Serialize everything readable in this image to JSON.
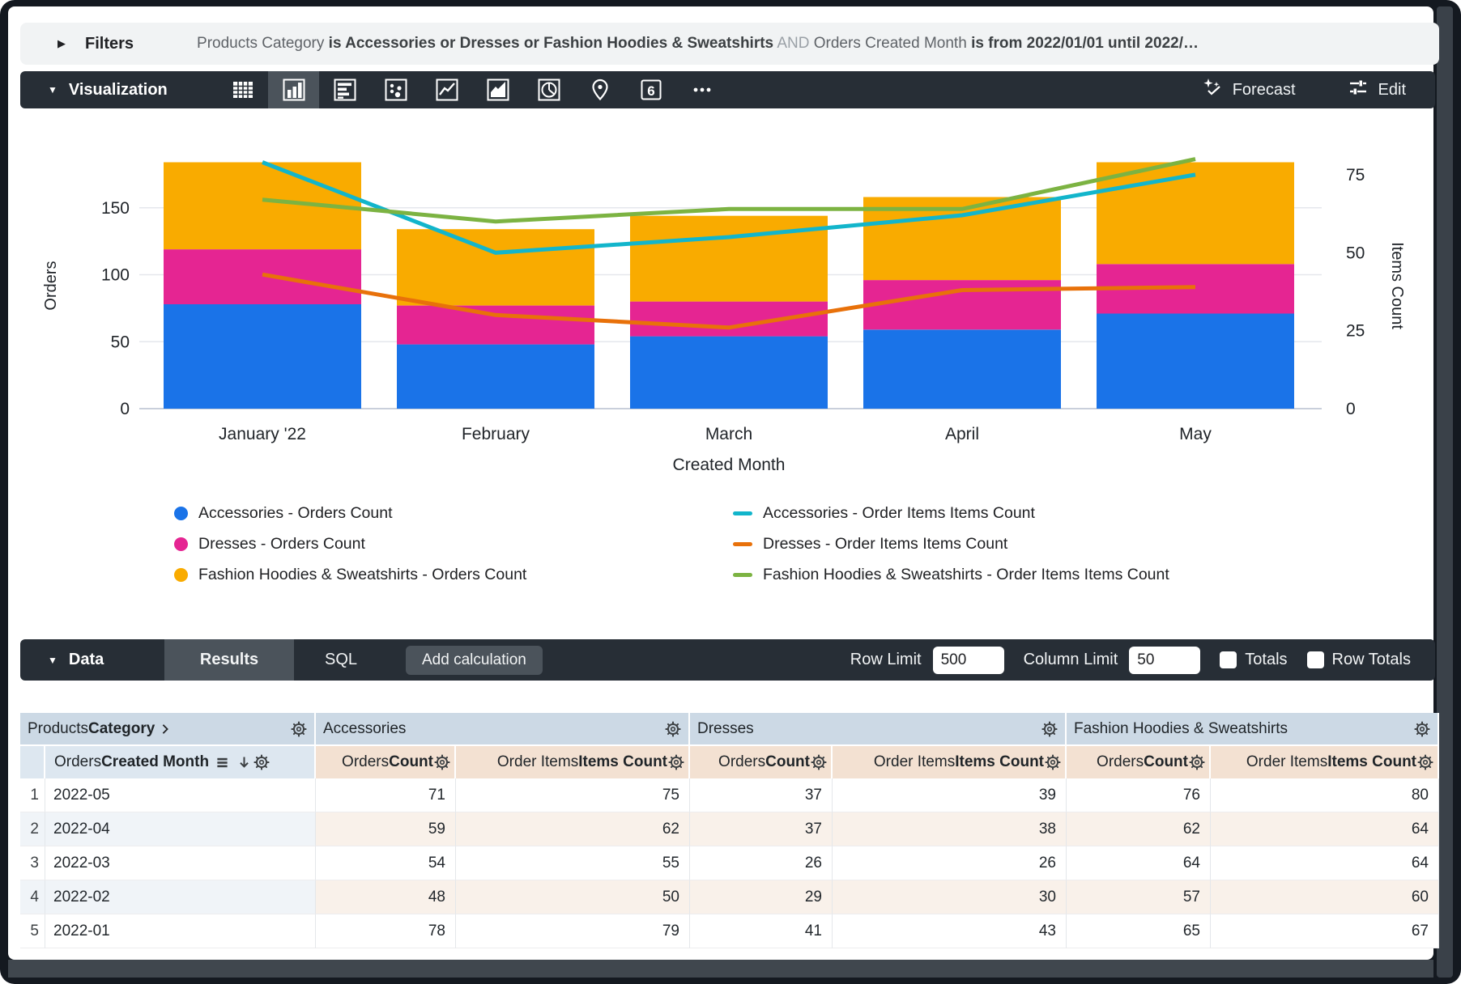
{
  "filters": {
    "label": "Filters",
    "expression": [
      {
        "text": "Products Category ",
        "style": "field"
      },
      {
        "text": "is Accessories or Dresses or Fashion Hoodies & Sweatshirts",
        "style": "value"
      },
      {
        "text": " AND ",
        "style": "conjunction"
      },
      {
        "text": "Orders Created Month ",
        "style": "field"
      },
      {
        "text": "is from 2022/01/01 until 2022/…",
        "style": "value"
      }
    ]
  },
  "visualization": {
    "label": "Visualization",
    "icon_types": [
      "table",
      "column",
      "horizontal-bar",
      "scatter",
      "line",
      "area",
      "pie",
      "map",
      "single-value",
      "more"
    ],
    "selected_icon": "column",
    "single_value": "6",
    "forecast_label": "Forecast",
    "edit_label": "Edit"
  },
  "chart_data": {
    "type": "combo-stacked-bar-line",
    "categories": [
      "January '22",
      "February",
      "March",
      "April",
      "May"
    ],
    "xlabel": "Created Month",
    "left_axis": {
      "label": "Orders",
      "ticks": [
        0,
        50,
        100,
        150
      ]
    },
    "right_axis": {
      "label": "Items Count",
      "ticks": [
        0,
        25,
        50,
        75
      ]
    },
    "grid": true,
    "legend_position": "bottom",
    "bar_series": [
      {
        "name": "Accessories - Orders Count",
        "color": "#1a73e8",
        "values": [
          78,
          48,
          54,
          59,
          71
        ]
      },
      {
        "name": "Dresses - Orders Count",
        "color": "#e52592",
        "values": [
          41,
          29,
          26,
          37,
          37
        ]
      },
      {
        "name": "Fashion Hoodies & Sweatshirts - Orders Count",
        "color": "#f9ab00",
        "values": [
          65,
          57,
          64,
          62,
          76
        ]
      }
    ],
    "line_series": [
      {
        "name": "Accessories - Order Items Items Count",
        "color": "#12b5cb",
        "values": [
          79,
          50,
          55,
          62,
          75
        ]
      },
      {
        "name": "Dresses - Order Items Items Count",
        "color": "#e8710a",
        "values": [
          43,
          30,
          26,
          38,
          39
        ]
      },
      {
        "name": "Fashion Hoodies & Sweatshirts - Order Items Items Count",
        "color": "#7cb342",
        "values": [
          67,
          60,
          64,
          64,
          80
        ]
      }
    ]
  },
  "data_bar": {
    "label": "Data",
    "results_tab": "Results",
    "sql_tab": "SQL",
    "add_calculation": "Add calculation",
    "row_limit_label": "Row Limit",
    "row_limit_value": "500",
    "column_limit_label": "Column Limit",
    "column_limit_value": "50",
    "totals_label": "Totals",
    "row_totals_label": "Row Totals",
    "totals_checked": false,
    "row_totals_checked": false
  },
  "table": {
    "group_headers": [
      {
        "plain": "Products ",
        "bold": "Category",
        "chevron": true
      },
      {
        "label": "Accessories"
      },
      {
        "label": "Dresses"
      },
      {
        "label": "Fashion Hoodies & Sweatshirts"
      }
    ],
    "column_headers": {
      "dimension": {
        "plain": "Orders ",
        "bold": "Created Month"
      },
      "orders": {
        "plain": "Orders ",
        "bold": "Count"
      },
      "items": {
        "plain": "Order Items ",
        "bold": "Items Count"
      }
    },
    "rows": [
      {
        "index": "1",
        "dimension": "2022-05",
        "values": [
          "71",
          "75",
          "37",
          "39",
          "76",
          "80"
        ]
      },
      {
        "index": "2",
        "dimension": "2022-04",
        "values": [
          "59",
          "62",
          "37",
          "38",
          "62",
          "64"
        ]
      },
      {
        "index": "3",
        "dimension": "2022-03",
        "values": [
          "54",
          "55",
          "26",
          "26",
          "64",
          "64"
        ]
      },
      {
        "index": "4",
        "dimension": "2022-02",
        "values": [
          "48",
          "50",
          "29",
          "30",
          "57",
          "60"
        ]
      },
      {
        "index": "5",
        "dimension": "2022-01",
        "values": [
          "78",
          "79",
          "41",
          "43",
          "65",
          "67"
        ]
      }
    ]
  },
  "theme": {
    "toolbar_bg": "#272e36",
    "toolbar_selected_bg": "#4b535b",
    "filter_bar_bg": "#f1f3f4",
    "group_header_bg": "#ccd9e5",
    "dimension_header_bg": "#dde7f0",
    "measure_header_bg": "#f3e1d2",
    "stripe_dimension_bg": "#f0f4f8",
    "stripe_measure_bg": "#f9f1ea"
  }
}
